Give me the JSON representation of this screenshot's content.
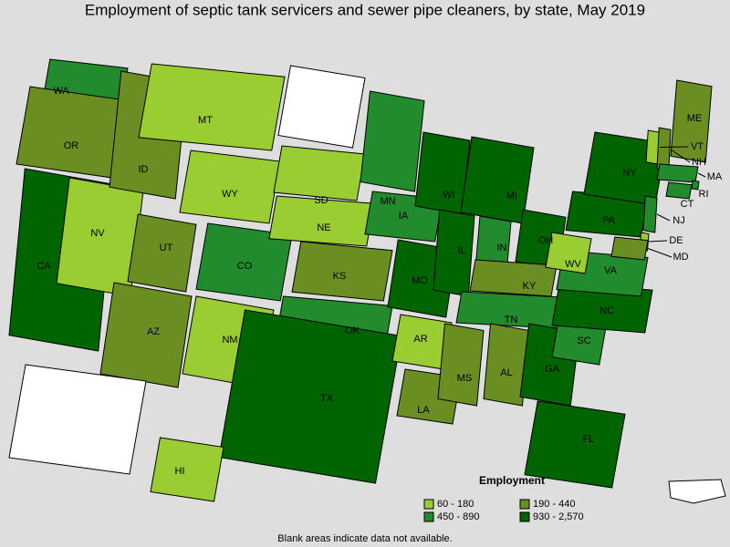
{
  "title": "Employment of septic tank servicers and sewer pipe cleaners, by state, May 2019",
  "states": [
    {
      "label": "WA",
      "color": "#228b2e"
    },
    {
      "label": "OR",
      "color": "#6b8e23"
    },
    {
      "label": "CA",
      "color": "#006400"
    },
    {
      "label": "NV",
      "color": "#9acd32"
    },
    {
      "label": "ID",
      "color": "#6b8e23"
    },
    {
      "label": "MT",
      "color": "#9acd32"
    },
    {
      "label": "WY",
      "color": "#9acd32"
    },
    {
      "label": "UT",
      "color": "#6b8e23"
    },
    {
      "label": "AZ",
      "color": "#6b8e23"
    },
    {
      "label": "CO",
      "color": "#228b2e"
    },
    {
      "label": "NM",
      "color": "#9acd32"
    },
    {
      "label": null,
      "color": "#ffffff"
    },
    {
      "label": "SD",
      "color": "#9acd32"
    },
    {
      "label": "NE",
      "color": "#9acd32"
    },
    {
      "label": "KS",
      "color": "#6b8e23"
    },
    {
      "label": "OK",
      "color": "#228b2e"
    },
    {
      "label": "TX",
      "color": "#006400"
    },
    {
      "label": "MN",
      "color": "#228b2e"
    },
    {
      "label": "IA",
      "color": "#228b2e"
    },
    {
      "label": "MO",
      "color": "#006400"
    },
    {
      "label": "AR",
      "color": "#9acd32"
    },
    {
      "label": "LA",
      "color": "#6b8e23"
    },
    {
      "label": "WI",
      "color": "#006400"
    },
    {
      "label": "IL",
      "color": "#006400"
    },
    {
      "label": "MI",
      "color": "#006400"
    },
    {
      "label": "IN",
      "color": "#228b2e"
    },
    {
      "label": "OH",
      "color": "#006400"
    },
    {
      "label": "KY",
      "color": "#6b8e23"
    },
    {
      "label": "TN",
      "color": "#228b2e"
    },
    {
      "label": "MS",
      "color": "#6b8e23"
    },
    {
      "label": "AL",
      "color": "#6b8e23"
    },
    {
      "label": "GA",
      "color": "#006400"
    },
    {
      "label": "FL",
      "color": "#006400"
    },
    {
      "label": "SC",
      "color": "#228b2e"
    },
    {
      "label": "NC",
      "color": "#006400"
    },
    {
      "label": "VA",
      "color": "#228b2e"
    },
    {
      "label": "WV",
      "color": "#9acd32"
    },
    {
      "label": "PA",
      "color": "#006400"
    },
    {
      "label": "NY",
      "color": "#006400"
    },
    {
      "label": "VT",
      "color": "#9acd32"
    },
    {
      "label": "NH",
      "color": "#6b8e23"
    },
    {
      "label": "ME",
      "color": "#6b8e23"
    },
    {
      "label": "MA",
      "color": "#228b2e"
    },
    {
      "label": "RI",
      "color": "#228b2e"
    },
    {
      "label": "CT",
      "color": "#228b2e"
    },
    {
      "label": "NJ",
      "color": "#228b2e"
    },
    {
      "label": "DE",
      "color": "#9acd32"
    },
    {
      "label": "MD",
      "color": "#6b8e23"
    },
    {
      "label": null,
      "color": "#ffffff"
    },
    {
      "label": "HI",
      "color": "#9acd32"
    }
  ],
  "legend": {
    "title": "Employment",
    "items": [
      {
        "label": "60 - 180",
        "color": "#9acd32"
      },
      {
        "label": "190 - 440",
        "color": "#6b8e23"
      },
      {
        "label": "450 - 890",
        "color": "#228b2e"
      },
      {
        "label": "930 - 2,570",
        "color": "#006400"
      }
    ]
  },
  "footnote": "Blank areas indicate data not available."
}
